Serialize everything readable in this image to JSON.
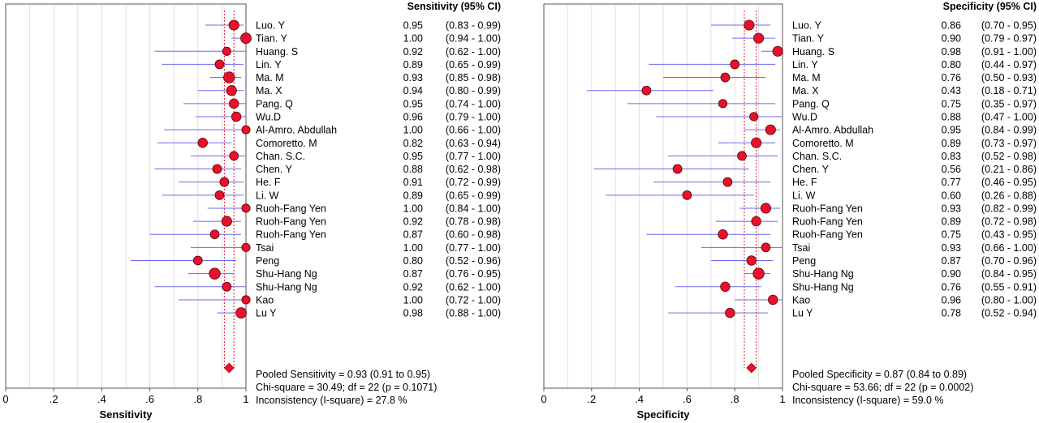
{
  "chart_data": [
    {
      "type": "forest",
      "title": "",
      "column_header": "Sensitivity (95% CI)",
      "xlabel": "Sensitivity",
      "xlim": [
        0,
        1
      ],
      "xticks": [
        "0",
        ".2",
        ".4",
        ".6",
        ".8",
        "1"
      ],
      "studies": [
        {
          "name": "Luo. Y",
          "est": 0.95,
          "lo": 0.83,
          "hi": 0.99,
          "ci": "(0.83 - 0.99)",
          "est_label": "0.95"
        },
        {
          "name": "Tian. Y",
          "est": 1.0,
          "lo": 0.94,
          "hi": 1.0,
          "ci": "(0.94 - 1.00)",
          "est_label": "1.00"
        },
        {
          "name": "Huang. S",
          "est": 0.92,
          "lo": 0.62,
          "hi": 1.0,
          "ci": "(0.62 - 1.00)",
          "est_label": "0.92"
        },
        {
          "name": "Lin. Y",
          "est": 0.89,
          "lo": 0.65,
          "hi": 0.99,
          "ci": "(0.65 - 0.99)",
          "est_label": "0.89"
        },
        {
          "name": "Ma. M",
          "est": 0.93,
          "lo": 0.85,
          "hi": 0.98,
          "ci": "(0.85 - 0.98)",
          "est_label": "0.93"
        },
        {
          "name": "Ma. X",
          "est": 0.94,
          "lo": 0.8,
          "hi": 0.99,
          "ci": "(0.80 - 0.99)",
          "est_label": "0.94"
        },
        {
          "name": "Pang. Q",
          "est": 0.95,
          "lo": 0.74,
          "hi": 1.0,
          "ci": "(0.74 - 1.00)",
          "est_label": "0.95"
        },
        {
          "name": "Wu.D",
          "est": 0.96,
          "lo": 0.79,
          "hi": 1.0,
          "ci": "(0.79 - 1.00)",
          "est_label": "0.96"
        },
        {
          "name": "Al-Amro. Abdullah",
          "est": 1.0,
          "lo": 0.66,
          "hi": 1.0,
          "ci": "(0.66 - 1.00)",
          "est_label": "1.00"
        },
        {
          "name": "Comoretto. M",
          "est": 0.82,
          "lo": 0.63,
          "hi": 0.94,
          "ci": "(0.63 - 0.94)",
          "est_label": "0.82"
        },
        {
          "name": "Chan. S.C.",
          "est": 0.95,
          "lo": 0.77,
          "hi": 1.0,
          "ci": "(0.77 - 1.00)",
          "est_label": "0.95"
        },
        {
          "name": "Chen. Y",
          "est": 0.88,
          "lo": 0.62,
          "hi": 0.98,
          "ci": "(0.62 - 0.98)",
          "est_label": "0.88"
        },
        {
          "name": "He. F",
          "est": 0.91,
          "lo": 0.72,
          "hi": 0.99,
          "ci": "(0.72 - 0.99)",
          "est_label": "0.91"
        },
        {
          "name": "Li. W",
          "est": 0.89,
          "lo": 0.65,
          "hi": 0.99,
          "ci": "(0.65 - 0.99)",
          "est_label": "0.89"
        },
        {
          "name": "Ruoh-Fang Yen",
          "est": 1.0,
          "lo": 0.84,
          "hi": 1.0,
          "ci": "(0.84 - 1.00)",
          "est_label": "1.00"
        },
        {
          "name": "Ruoh-Fang Yen",
          "est": 0.92,
          "lo": 0.78,
          "hi": 0.98,
          "ci": "(0.78 - 0.98)",
          "est_label": "0.92"
        },
        {
          "name": "Ruoh-Fang Yen",
          "est": 0.87,
          "lo": 0.6,
          "hi": 0.98,
          "ci": "(0.60 - 0.98)",
          "est_label": "0.87"
        },
        {
          "name": "Tsai",
          "est": 1.0,
          "lo": 0.77,
          "hi": 1.0,
          "ci": "(0.77 - 1.00)",
          "est_label": "1.00"
        },
        {
          "name": "Peng",
          "est": 0.8,
          "lo": 0.52,
          "hi": 0.96,
          "ci": "(0.52 - 0.96)",
          "est_label": "0.80"
        },
        {
          "name": "Shu-Hang Ng",
          "est": 0.87,
          "lo": 0.76,
          "hi": 0.95,
          "ci": "(0.76 - 0.95)",
          "est_label": "0.87"
        },
        {
          "name": "Shu-Hang Ng",
          "est": 0.92,
          "lo": 0.62,
          "hi": 1.0,
          "ci": "(0.62 - 1.00)",
          "est_label": "0.92"
        },
        {
          "name": "Kao",
          "est": 1.0,
          "lo": 0.72,
          "hi": 1.0,
          "ci": "(0.72 - 1.00)",
          "est_label": "1.00"
        },
        {
          "name": "Lu Y",
          "est": 0.98,
          "lo": 0.88,
          "hi": 1.0,
          "ci": "(0.88 - 1.00)",
          "est_label": "0.98"
        }
      ],
      "marker_weight": [
        0.8,
        0.9,
        0.5,
        0.6,
        1.0,
        0.8,
        0.7,
        0.7,
        0.5,
        0.7,
        0.6,
        0.6,
        0.6,
        0.6,
        0.5,
        0.8,
        0.6,
        0.5,
        0.6,
        1.0,
        0.6,
        0.5,
        0.9
      ],
      "pooled": {
        "est": 0.93,
        "lo": 0.91,
        "hi": 0.95
      },
      "summary_lines": [
        "Pooled Sensitivity = 0.93 (0.91 to 0.95)",
        "Chi-square = 30.49; df =  22 (p = 0.1071)",
        "Inconsistency (I-square) = 27.8 %"
      ],
      "colors": {
        "marker": "#e8112d",
        "ci_line": "#6a6af0",
        "pooled_line": "#e8112d",
        "grid": "#e0e0e0"
      }
    },
    {
      "type": "forest",
      "title": "",
      "column_header": "Specificity (95% CI)",
      "xlabel": "Specificity",
      "xlim": [
        0,
        1
      ],
      "xticks": [
        "0",
        ".2",
        ".4",
        ".6",
        ".8",
        "1"
      ],
      "studies": [
        {
          "name": "Luo. Y",
          "est": 0.86,
          "lo": 0.7,
          "hi": 0.95,
          "ci": "(0.70 - 0.95)",
          "est_label": "0.86"
        },
        {
          "name": "Tian. Y",
          "est": 0.9,
          "lo": 0.79,
          "hi": 0.97,
          "ci": "(0.79 - 0.97)",
          "est_label": "0.90"
        },
        {
          "name": "Huang. S",
          "est": 0.98,
          "lo": 0.91,
          "hi": 1.0,
          "ci": "(0.91 - 1.00)",
          "est_label": "0.98"
        },
        {
          "name": "Lin. Y",
          "est": 0.8,
          "lo": 0.44,
          "hi": 0.97,
          "ci": "(0.44 - 0.97)",
          "est_label": "0.80"
        },
        {
          "name": "Ma. M",
          "est": 0.76,
          "lo": 0.5,
          "hi": 0.93,
          "ci": "(0.50 - 0.93)",
          "est_label": "0.76"
        },
        {
          "name": "Ma. X",
          "est": 0.43,
          "lo": 0.18,
          "hi": 0.71,
          "ci": "(0.18 - 0.71)",
          "est_label": "0.43"
        },
        {
          "name": "Pang. Q",
          "est": 0.75,
          "lo": 0.35,
          "hi": 0.97,
          "ci": "(0.35 - 0.97)",
          "est_label": "0.75"
        },
        {
          "name": "Wu.D",
          "est": 0.88,
          "lo": 0.47,
          "hi": 1.0,
          "ci": "(0.47 - 1.00)",
          "est_label": "0.88"
        },
        {
          "name": "Al-Amro. Abdullah",
          "est": 0.95,
          "lo": 0.84,
          "hi": 0.99,
          "ci": "(0.84 - 0.99)",
          "est_label": "0.95"
        },
        {
          "name": "Comoretto. M",
          "est": 0.89,
          "lo": 0.73,
          "hi": 0.97,
          "ci": "(0.73 - 0.97)",
          "est_label": "0.89"
        },
        {
          "name": "Chan. S.C.",
          "est": 0.83,
          "lo": 0.52,
          "hi": 0.98,
          "ci": "(0.52 - 0.98)",
          "est_label": "0.83"
        },
        {
          "name": "Chen. Y",
          "est": 0.56,
          "lo": 0.21,
          "hi": 0.86,
          "ci": "(0.21 - 0.86)",
          "est_label": "0.56"
        },
        {
          "name": "He. F",
          "est": 0.77,
          "lo": 0.46,
          "hi": 0.95,
          "ci": "(0.46 - 0.95)",
          "est_label": "0.77"
        },
        {
          "name": "Li. W",
          "est": 0.6,
          "lo": 0.26,
          "hi": 0.88,
          "ci": "(0.26 - 0.88)",
          "est_label": "0.60"
        },
        {
          "name": "Ruoh-Fang Yen",
          "est": 0.93,
          "lo": 0.82,
          "hi": 0.99,
          "ci": "(0.82 - 0.99)",
          "est_label": "0.93"
        },
        {
          "name": "Ruoh-Fang Yen",
          "est": 0.89,
          "lo": 0.72,
          "hi": 0.98,
          "ci": "(0.72 - 0.98)",
          "est_label": "0.89"
        },
        {
          "name": "Ruoh-Fang Yen",
          "est": 0.75,
          "lo": 0.43,
          "hi": 0.95,
          "ci": "(0.43 - 0.95)",
          "est_label": "0.75"
        },
        {
          "name": "Tsai",
          "est": 0.93,
          "lo": 0.66,
          "hi": 1.0,
          "ci": "(0.66 - 1.00)",
          "est_label": "0.93"
        },
        {
          "name": "Peng",
          "est": 0.87,
          "lo": 0.7,
          "hi": 0.96,
          "ci": "(0.70 - 0.96)",
          "est_label": "0.87"
        },
        {
          "name": "Shu-Hang Ng",
          "est": 0.9,
          "lo": 0.84,
          "hi": 0.95,
          "ci": "(0.84 - 0.95)",
          "est_label": "0.90"
        },
        {
          "name": "Shu-Hang Ng",
          "est": 0.76,
          "lo": 0.55,
          "hi": 0.91,
          "ci": "(0.55 - 0.91)",
          "est_label": "0.76"
        },
        {
          "name": "Kao",
          "est": 0.96,
          "lo": 0.8,
          "hi": 1.0,
          "ci": "(0.80 - 1.00)",
          "est_label": "0.96"
        },
        {
          "name": "Lu Y",
          "est": 0.78,
          "lo": 0.52,
          "hi": 0.94,
          "ci": "(0.52 - 0.94)",
          "est_label": "0.78"
        }
      ],
      "marker_weight": [
        0.8,
        0.8,
        0.8,
        0.6,
        0.6,
        0.6,
        0.5,
        0.5,
        0.8,
        0.8,
        0.6,
        0.6,
        0.6,
        0.6,
        0.8,
        0.7,
        0.7,
        0.6,
        0.7,
        1.0,
        0.7,
        0.7,
        0.7
      ],
      "pooled": {
        "est": 0.87,
        "lo": 0.84,
        "hi": 0.89
      },
      "summary_lines": [
        "Pooled Specificity = 0.87 (0.84 to 0.89)",
        "Chi-square = 53.66; df =  22 (p = 0.0002)",
        "Inconsistency (I-square) = 59.0 %"
      ],
      "colors": {
        "marker": "#e8112d",
        "ci_line": "#6a6af0",
        "pooled_line": "#e8112d",
        "grid": "#e0e0e0"
      }
    }
  ]
}
